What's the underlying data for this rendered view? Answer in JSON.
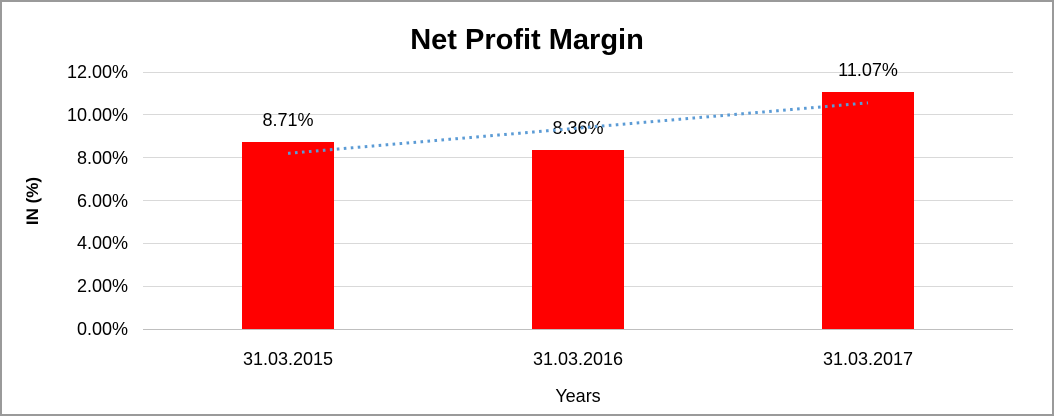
{
  "chart_data": {
    "type": "bar",
    "title": "Net Profit Margin",
    "xlabel": "Years",
    "ylabel": "IN (%)",
    "categories": [
      "31.03.2015",
      "31.03.2016",
      "31.03.2017"
    ],
    "values": [
      8.71,
      8.36,
      11.07
    ],
    "data_labels": [
      "8.71%",
      "8.36%",
      "11.07%"
    ],
    "ylim": [
      0,
      12
    ],
    "ytick_step": 2,
    "ytick_labels": [
      "0.00%",
      "2.00%",
      "4.00%",
      "6.00%",
      "8.00%",
      "10.00%",
      "12.00%"
    ],
    "grid": true,
    "legend": false,
    "bar_color": "#ff0000",
    "trendline": {
      "kind": "linear",
      "style": "dotted",
      "color": "#5b9bd5"
    }
  }
}
